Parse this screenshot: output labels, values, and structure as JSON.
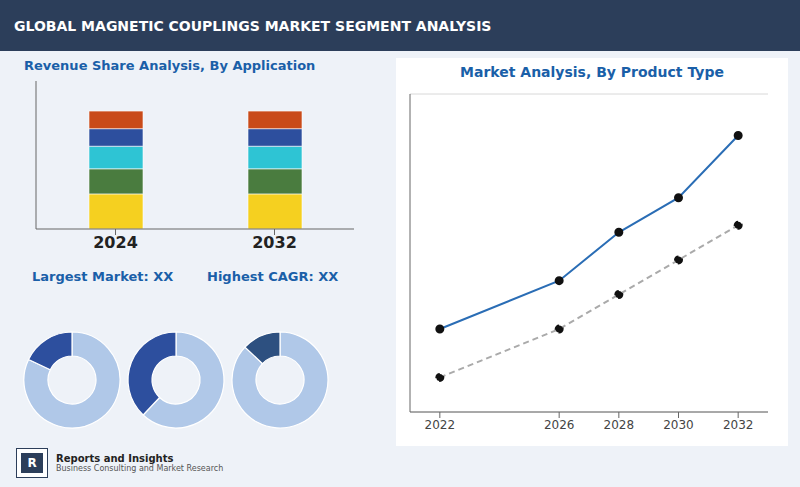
{
  "title": "GLOBAL MAGNETIC COUPLINGS MARKET SEGMENT ANALYSIS",
  "annotations": [
    "R",
    "Reports and Insights",
    "Business Consulting and Market Research"
  ],
  "chart_data": [
    {
      "type": "bar",
      "title": "Revenue Share Analysis, By Application",
      "categories": [
        "2024",
        "2032"
      ],
      "stacked": true,
      "series": [
        {
          "color": "#f5d020",
          "values": [
            0.28,
            0.28
          ]
        },
        {
          "color": "#4a7c3f",
          "values": [
            0.2,
            0.2
          ]
        },
        {
          "color": "#2ec4d4",
          "values": [
            0.18,
            0.18
          ]
        },
        {
          "color": "#2d4f9e",
          "values": [
            0.14,
            0.14
          ]
        },
        {
          "color": "#c94b1a",
          "values": [
            0.14,
            0.14
          ]
        }
      ],
      "ylim": [
        0,
        1.18
      ],
      "grid": false,
      "tick_labels": "x",
      "annotations": [
        "Largest Market: XX",
        "Highest CAGR: XX"
      ]
    },
    {
      "type": "pie",
      "values": [
        0.82,
        0.18
      ],
      "colors": [
        "#b0c8e8",
        "#2d4f9e"
      ]
    },
    {
      "type": "pie",
      "values": [
        0.62,
        0.38
      ],
      "colors": [
        "#b0c8e8",
        "#2d4f9e"
      ]
    },
    {
      "type": "pie",
      "values": [
        0.87,
        0.13
      ],
      "colors": [
        "#b0c8e8",
        "#2d5080"
      ]
    },
    {
      "type": "line",
      "title": "Market Analysis, By Product Type",
      "x": [
        2022,
        2026,
        2028,
        2030,
        2032
      ],
      "series": [
        {
          "color": "#2a6db5",
          "line_style": "solid",
          "marker": "circle",
          "values": [
            0.32,
            0.46,
            0.6,
            0.7,
            0.88
          ]
        },
        {
          "color": "#aaaaaa",
          "line_style": "dashed",
          "marker": "circle",
          "values": [
            0.18,
            0.32,
            0.42,
            0.52,
            0.62
          ]
        }
      ],
      "xlim": [
        2021,
        2033
      ],
      "xticks": [
        2022,
        2026,
        2028,
        2030,
        2032
      ],
      "ylim": [
        0.08,
        1.0
      ],
      "yticks": [
        0.18,
        0.365,
        0.55,
        0.735,
        0.92
      ],
      "grid": true,
      "tick_labels": "x"
    }
  ]
}
